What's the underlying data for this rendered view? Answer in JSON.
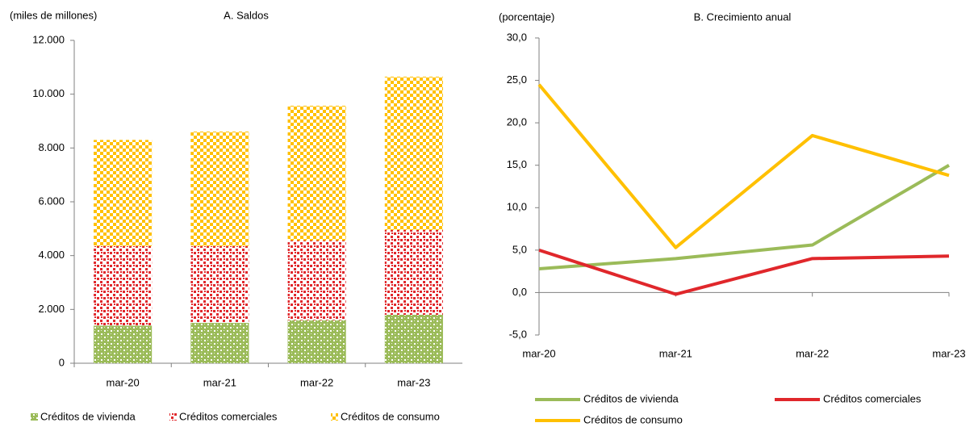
{
  "chart_data": [
    {
      "type": "stacked_bar",
      "title": "A. Saldos",
      "y_label": "(miles de millones)",
      "categories": [
        "mar-20",
        "mar-21",
        "mar-22",
        "mar-23"
      ],
      "series": [
        {
          "name": "Créditos de vivienda",
          "color": "#9bbb59",
          "values": [
            1400,
            1500,
            1600,
            1800
          ]
        },
        {
          "name": "Créditos comerciales",
          "color": "#e0272b",
          "values": [
            2950,
            2850,
            2960,
            3150
          ]
        },
        {
          "name": "Créditos de consumo",
          "color": "#ffc000",
          "values": [
            3950,
            4260,
            5010,
            5700
          ]
        }
      ],
      "ylim": [
        0,
        12000
      ],
      "yticks": [
        0,
        {
          "value": 2000,
          "label": "2.000"
        },
        {
          "value": 4000,
          "label": "4.000"
        },
        {
          "value": 6000,
          "label": "6.000"
        },
        {
          "value": 8000,
          "label": "8.000"
        },
        {
          "value": 10000,
          "label": "10.000"
        },
        {
          "value": 12000,
          "label": "12.000"
        }
      ]
    },
    {
      "type": "line",
      "title": "B. Crecimiento anual",
      "y_label": "(porcentaje)",
      "categories": [
        "mar-20",
        "mar-21",
        "mar-22",
        "mar-23"
      ],
      "series": [
        {
          "name": "Créditos de vivienda",
          "color": "#9bbb59",
          "values": [
            2.8,
            4.0,
            5.6,
            15.0
          ]
        },
        {
          "name": "Créditos comerciales",
          "color": "#e0272b",
          "values": [
            5.0,
            -0.2,
            4.0,
            4.3
          ]
        },
        {
          "name": "Créditos de consumo",
          "color": "#ffc000",
          "values": [
            24.5,
            5.3,
            18.5,
            13.8
          ]
        }
      ],
      "ylim": [
        -5,
        30
      ],
      "yticks": [
        {
          "value": -5,
          "label": "-5,0"
        },
        {
          "value": 0,
          "label": "0,0"
        },
        {
          "value": 5,
          "label": "5,0"
        },
        {
          "value": 10,
          "label": "10,0"
        },
        {
          "value": 15,
          "label": "15,0"
        },
        {
          "value": 20,
          "label": "20,0"
        },
        {
          "value": 25,
          "label": "25,0"
        },
        {
          "value": 30,
          "label": "30,0"
        }
      ]
    }
  ]
}
